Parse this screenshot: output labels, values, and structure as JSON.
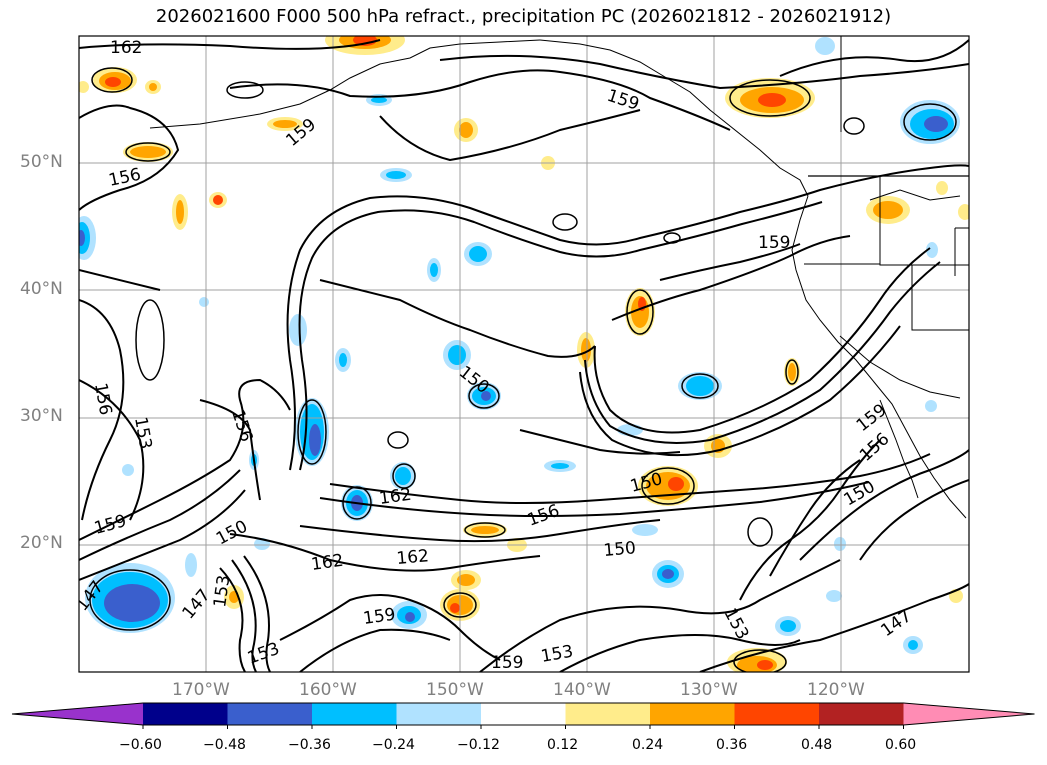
{
  "title": "2026021600 F000 500 hPa refract., precipitation PC (2026021812 - 2026021912)",
  "map": {
    "lat_labels": [
      "50°N",
      "40°N",
      "30°N",
      "20°N"
    ],
    "lon_labels": [
      "170°W",
      "160°W",
      "150°W",
      "140°W",
      "130°W",
      "120°W"
    ],
    "contour_labels": [
      "162",
      "159",
      "156",
      "159",
      "156",
      "153",
      "156",
      "159",
      "150",
      "147",
      "147",
      "153",
      "153",
      "162",
      "162",
      "159",
      "159",
      "153",
      "156",
      "150",
      "150",
      "150",
      "153",
      "147",
      "150",
      "156",
      "159",
      "162",
      "159"
    ],
    "extent": {
      "lon": [
        -180,
        -110
      ],
      "lat": [
        10,
        60
      ]
    },
    "grid": true
  },
  "colorbar": {
    "ticks": [
      "−0.60",
      "−0.48",
      "−0.36",
      "−0.24",
      "−0.12",
      "0.12",
      "0.24",
      "0.36",
      "0.48",
      "0.60"
    ],
    "colors": [
      "#9932cc",
      "#00008b",
      "#3a5fcd",
      "#00bfff",
      "#b0e2ff",
      "#ffffff",
      "#ffec8b",
      "#ffa500",
      "#ff4500",
      "#b22222",
      "#ff8cb4"
    ]
  }
}
